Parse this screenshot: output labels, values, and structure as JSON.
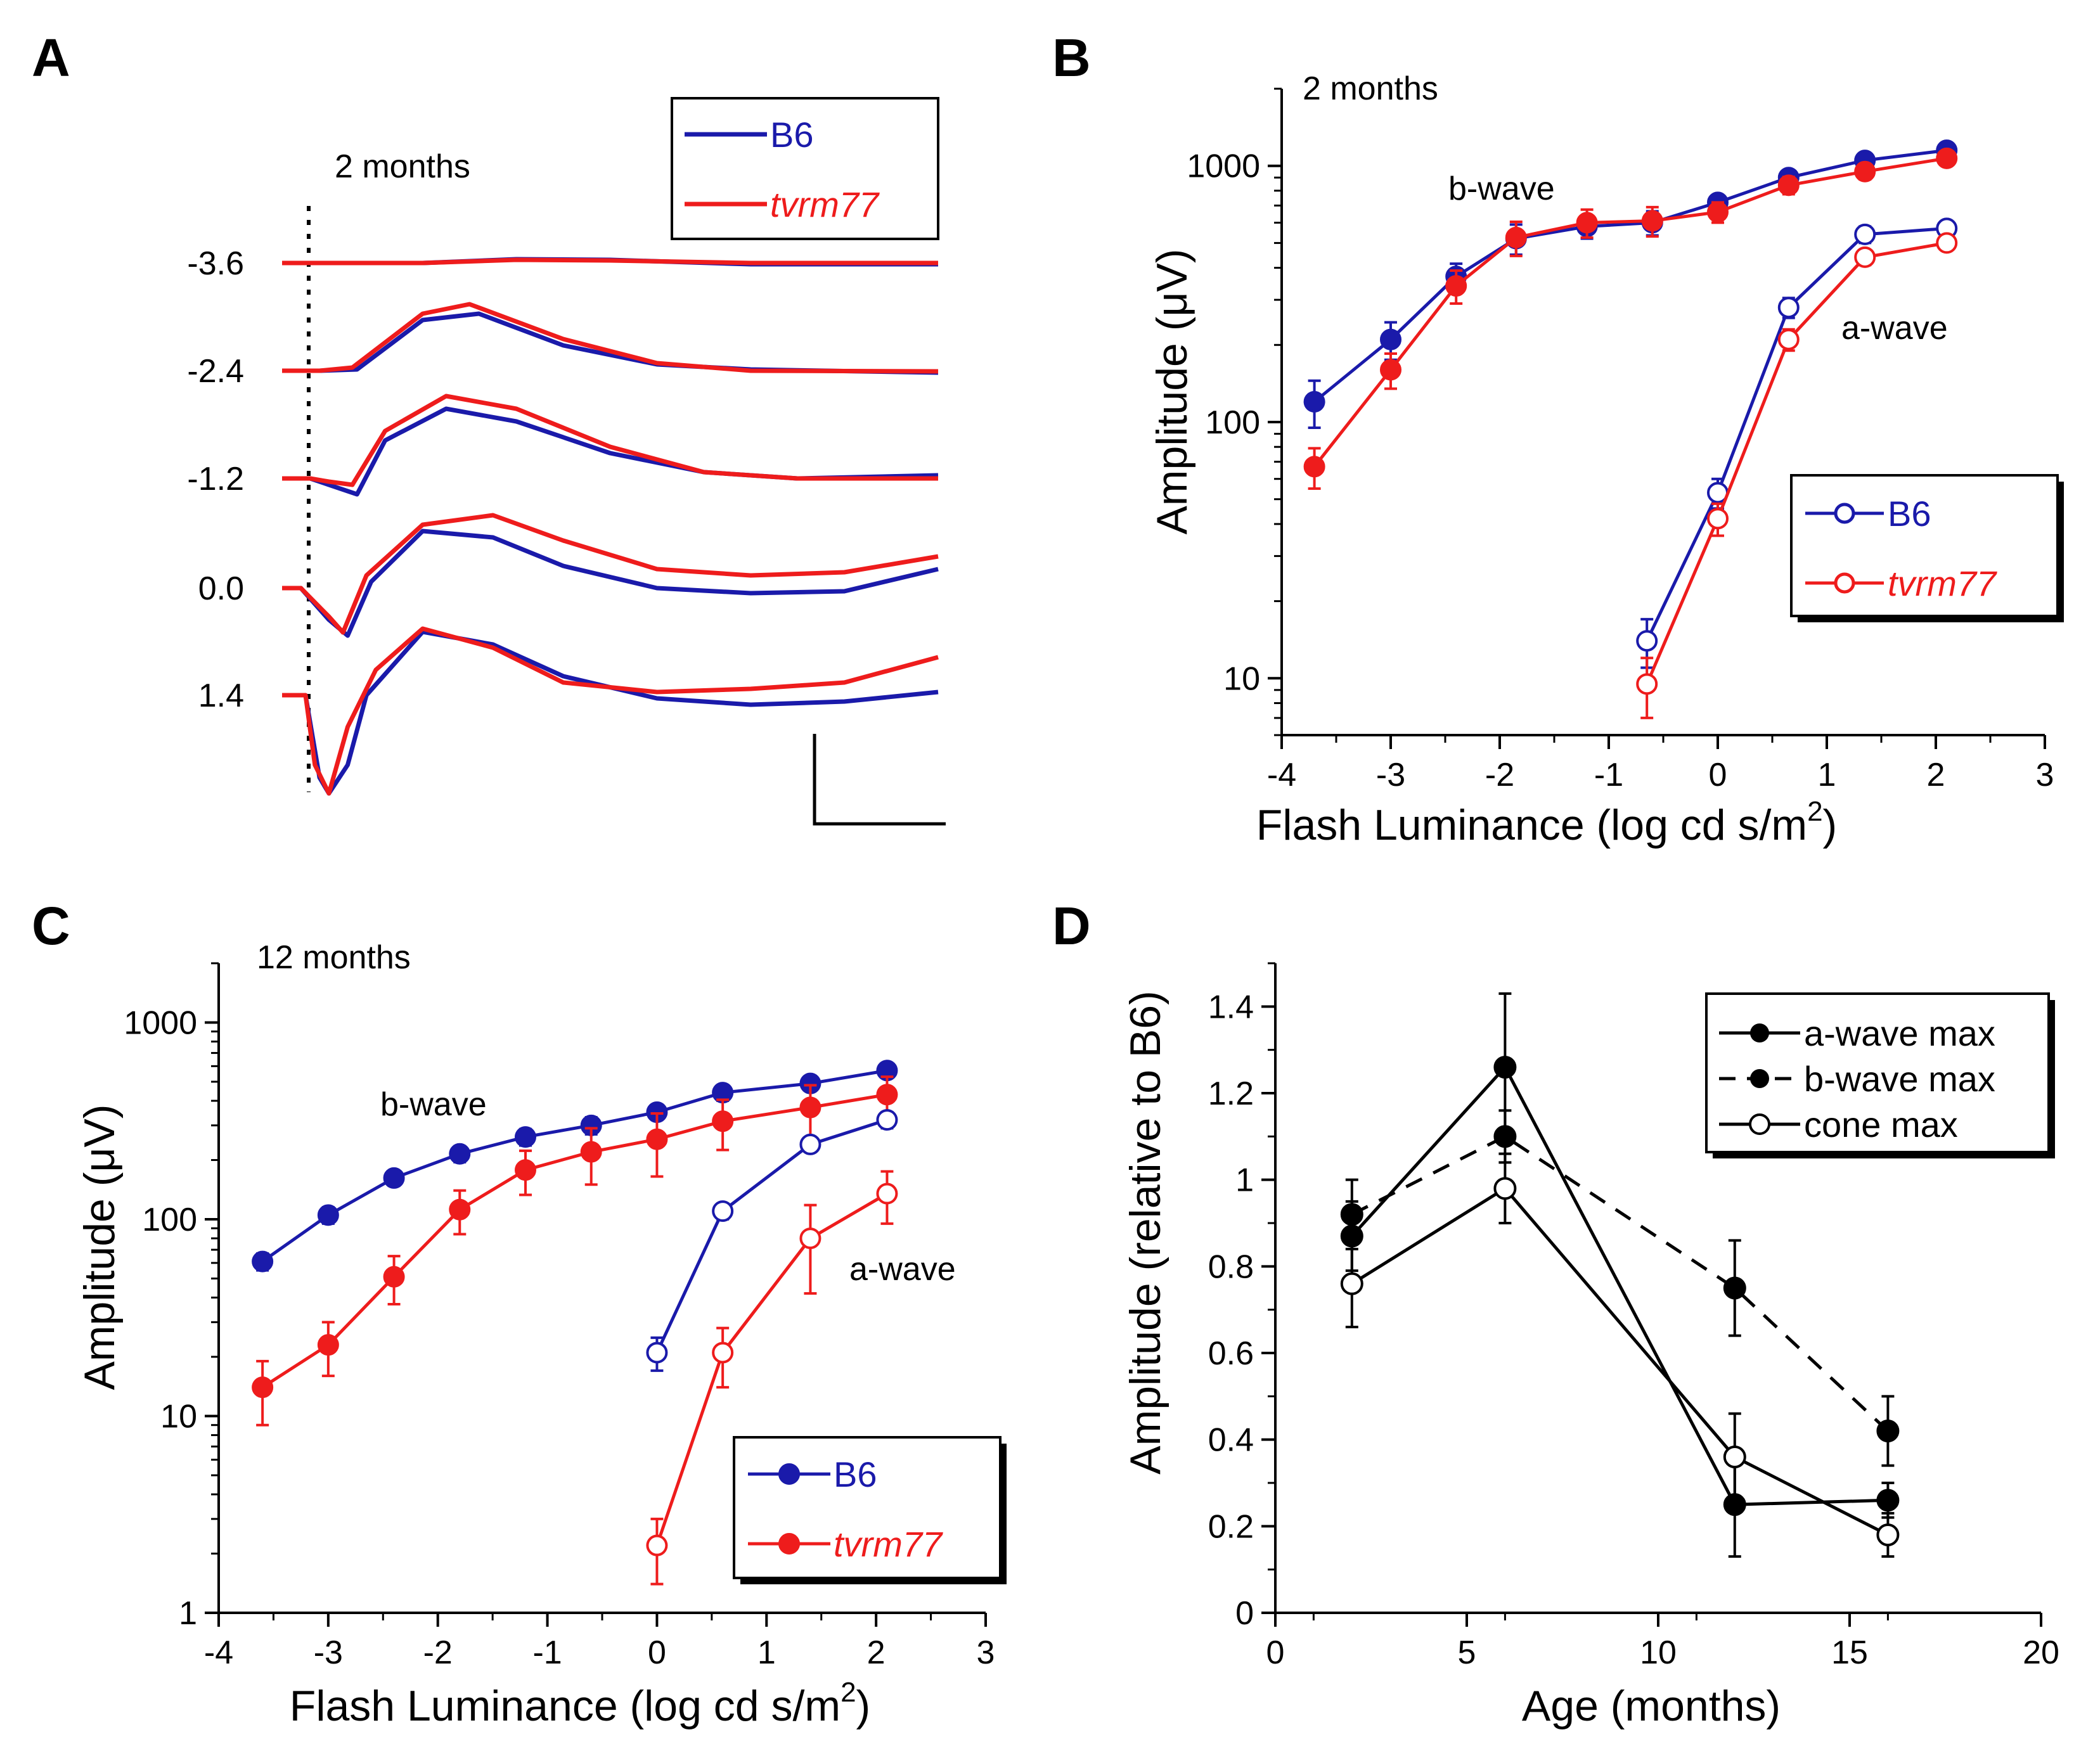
{
  "panels": [
    {
      "letter": "A"
    },
    {
      "letter": "B"
    },
    {
      "letter": "C"
    },
    {
      "letter": "D"
    }
  ],
  "colors": {
    "B6": "#1a1aaa",
    "tvrm77": "#ee1c1c",
    "black": "#000000"
  },
  "chart_data": [
    {
      "panel": "A",
      "type": "line",
      "title": "2 months",
      "description_text": "",
      "trace_labels": [
        "-3.6",
        "-2.4",
        "-1.2",
        "0.0",
        "1.4"
      ],
      "legend": [
        "B6",
        "tvrm77"
      ],
      "traces": [
        {
          "label": "-3.6",
          "B6": [
            [
              0,
              0
            ],
            [
              0.3,
              0
            ],
            [
              0.5,
              0.06
            ],
            [
              0.7,
              0.05
            ],
            [
              1.0,
              -0.02
            ],
            [
              1.4,
              -0.02
            ]
          ],
          "tvrm77": [
            [
              0,
              0
            ],
            [
              0.3,
              0
            ],
            [
              0.5,
              0.05
            ],
            [
              0.7,
              0.04
            ],
            [
              1.0,
              0.0
            ],
            [
              1.4,
              0.0
            ]
          ]
        },
        {
          "label": "-2.4",
          "B6": [
            [
              0,
              0
            ],
            [
              0.08,
              0
            ],
            [
              0.16,
              0.02
            ],
            [
              0.3,
              0.8
            ],
            [
              0.42,
              0.9
            ],
            [
              0.6,
              0.4
            ],
            [
              0.8,
              0.1
            ],
            [
              1.0,
              0.02
            ],
            [
              1.4,
              -0.03
            ]
          ],
          "tvrm77": [
            [
              0,
              0
            ],
            [
              0.08,
              0
            ],
            [
              0.15,
              0.05
            ],
            [
              0.3,
              0.9
            ],
            [
              0.4,
              1.05
            ],
            [
              0.6,
              0.5
            ],
            [
              0.8,
              0.12
            ],
            [
              1.0,
              0.0
            ],
            [
              1.4,
              -0.01
            ]
          ]
        },
        {
          "label": "-1.2",
          "B6": [
            [
              0,
              0
            ],
            [
              0.06,
              0
            ],
            [
              0.1,
              -0.1
            ],
            [
              0.16,
              -0.25
            ],
            [
              0.22,
              0.6
            ],
            [
              0.35,
              1.1
            ],
            [
              0.5,
              0.9
            ],
            [
              0.7,
              0.4
            ],
            [
              0.9,
              0.1
            ],
            [
              1.1,
              0.0
            ],
            [
              1.4,
              0.05
            ]
          ],
          "tvrm77": [
            [
              0,
              0
            ],
            [
              0.06,
              0
            ],
            [
              0.1,
              -0.05
            ],
            [
              0.15,
              -0.1
            ],
            [
              0.22,
              0.75
            ],
            [
              0.35,
              1.3
            ],
            [
              0.5,
              1.1
            ],
            [
              0.7,
              0.5
            ],
            [
              0.9,
              0.1
            ],
            [
              1.1,
              0.0
            ],
            [
              1.4,
              0.0
            ]
          ]
        },
        {
          "label": "0.0",
          "B6": [
            [
              0,
              0
            ],
            [
              0.04,
              0
            ],
            [
              0.1,
              -0.5
            ],
            [
              0.14,
              -0.75
            ],
            [
              0.19,
              0.1
            ],
            [
              0.3,
              0.9
            ],
            [
              0.45,
              0.8
            ],
            [
              0.6,
              0.35
            ],
            [
              0.8,
              0.0
            ],
            [
              1.0,
              -0.08
            ],
            [
              1.2,
              -0.05
            ],
            [
              1.4,
              0.3
            ]
          ],
          "tvrm77": [
            [
              0,
              0
            ],
            [
              0.04,
              0
            ],
            [
              0.1,
              -0.45
            ],
            [
              0.13,
              -0.7
            ],
            [
              0.18,
              0.2
            ],
            [
              0.3,
              1.0
            ],
            [
              0.45,
              1.15
            ],
            [
              0.6,
              0.75
            ],
            [
              0.8,
              0.3
            ],
            [
              1.0,
              0.2
            ],
            [
              1.2,
              0.25
            ],
            [
              1.4,
              0.5
            ]
          ]
        },
        {
          "label": "1.4",
          "B6": [
            [
              0,
              0
            ],
            [
              0.05,
              0
            ],
            [
              0.08,
              -1.3
            ],
            [
              0.1,
              -1.55
            ],
            [
              0.14,
              -1.1
            ],
            [
              0.18,
              0.0
            ],
            [
              0.3,
              1.0
            ],
            [
              0.45,
              0.8
            ],
            [
              0.6,
              0.3
            ],
            [
              0.8,
              -0.05
            ],
            [
              1.0,
              -0.15
            ],
            [
              1.2,
              -0.1
            ],
            [
              1.4,
              0.05
            ]
          ],
          "tvrm77": [
            [
              0,
              0
            ],
            [
              0.05,
              0
            ],
            [
              0.07,
              -1.1
            ],
            [
              0.1,
              -1.55
            ],
            [
              0.14,
              -0.5
            ],
            [
              0.2,
              0.4
            ],
            [
              0.3,
              1.05
            ],
            [
              0.45,
              0.75
            ],
            [
              0.6,
              0.2
            ],
            [
              0.8,
              0.05
            ],
            [
              1.0,
              0.1
            ],
            [
              1.2,
              0.2
            ],
            [
              1.4,
              0.6
            ]
          ]
        }
      ]
    },
    {
      "panel": "B",
      "type": "line",
      "title": "2 months",
      "xlabel": "Flash Luminance (log cd s/m",
      "xlabel_sup": "2",
      "xlabel_end": ")",
      "ylabel": "Amplitude (μV)",
      "xlim": [
        -4,
        3
      ],
      "ylim": [
        6,
        2000
      ],
      "yscale": "log",
      "xticks": [
        -4,
        -3,
        -2,
        -1,
        0,
        1,
        2,
        3
      ],
      "xtick_labels": [
        "-4",
        "-3",
        "-2",
        "-1",
        "0",
        "1",
        "2",
        "3"
      ],
      "yticks": [
        10,
        100,
        1000
      ],
      "ytick_labels": [
        "10",
        "100",
        "1000"
      ],
      "annotations": [
        "b-wave",
        "a-wave"
      ],
      "legend": [
        "B6",
        "tvrm77"
      ],
      "series": [
        {
          "name": "B6 b-wave",
          "group": "B6",
          "filled": true,
          "x": [
            -3.7,
            -3.0,
            -2.4,
            -1.85,
            -1.2,
            -0.6,
            0.0,
            0.65,
            1.35,
            2.1
          ],
          "y": [
            120,
            210,
            370,
            520,
            580,
            600,
            720,
            900,
            1050,
            1150
          ],
          "err": [
            25,
            35,
            45,
            70,
            60,
            65,
            50,
            55,
            55,
            45
          ]
        },
        {
          "name": "tvrm77 b-wave",
          "group": "tvrm77",
          "filled": true,
          "x": [
            -3.7,
            -3.0,
            -2.4,
            -1.85,
            -1.2,
            -0.6,
            0.0,
            0.65,
            1.35,
            2.1
          ],
          "y": [
            67,
            160,
            340,
            525,
            600,
            610,
            660,
            840,
            950,
            1070
          ],
          "err": [
            12,
            25,
            50,
            80,
            75,
            80,
            60,
            65,
            65,
            55
          ]
        },
        {
          "name": "B6 a-wave",
          "group": "B6",
          "filled": false,
          "x": [
            -0.65,
            0.0,
            0.65,
            1.35,
            2.1
          ],
          "y": [
            14,
            53,
            280,
            540,
            570
          ],
          "err": [
            3,
            7,
            25,
            40,
            40
          ]
        },
        {
          "name": "tvrm77 a-wave",
          "group": "tvrm77",
          "filled": false,
          "x": [
            -0.65,
            0.0,
            0.65,
            1.35,
            2.1
          ],
          "y": [
            9.5,
            42,
            210,
            440,
            500
          ],
          "err": [
            2.5,
            6,
            20,
            30,
            30
          ]
        }
      ]
    },
    {
      "panel": "C",
      "type": "line",
      "title": "12 months",
      "xlabel": "Flash Luminance (log cd s/m",
      "xlabel_sup": "2",
      "xlabel_end": ")",
      "ylabel": "Amplitude (μV)",
      "xlim": [
        -4,
        3
      ],
      "ylim": [
        1,
        2000
      ],
      "yscale": "log",
      "xticks": [
        -4,
        -3,
        -2,
        -1,
        0,
        1,
        2,
        3
      ],
      "xtick_labels": [
        "-4",
        "-3",
        "-2",
        "-1",
        "0",
        "1",
        "2",
        "3"
      ],
      "yticks": [
        1,
        10,
        100,
        1000
      ],
      "ytick_labels": [
        "1",
        "10",
        "100",
        "1000"
      ],
      "annotations": [
        "b-wave",
        "a-wave"
      ],
      "legend": [
        "B6",
        "tvrm77"
      ],
      "series": [
        {
          "name": "B6 b-wave",
          "group": "B6",
          "filled": true,
          "x": [
            -3.6,
            -3.0,
            -2.4,
            -1.8,
            -1.2,
            -0.6,
            0.0,
            0.6,
            1.4,
            2.1
          ],
          "y": [
            61,
            105,
            162,
            215,
            262,
            300,
            350,
            440,
            490,
            570
          ],
          "err": [
            6,
            10,
            14,
            20,
            25,
            30,
            30,
            40,
            40,
            45
          ]
        },
        {
          "name": "tvrm77 b-wave",
          "group": "tvrm77",
          "filled": true,
          "x": [
            -3.6,
            -3.0,
            -2.4,
            -1.8,
            -1.2,
            -0.6,
            0.0,
            0.6,
            1.4,
            2.1
          ],
          "y": [
            14,
            23,
            51,
            112,
            178,
            220,
            255,
            315,
            370,
            430
          ],
          "err": [
            5,
            7,
            14,
            28,
            45,
            70,
            90,
            90,
            110,
            100
          ]
        },
        {
          "name": "B6 a-wave",
          "group": "B6",
          "filled": false,
          "x": [
            0.0,
            0.6,
            1.4,
            2.1
          ],
          "y": [
            21,
            110,
            240,
            320
          ],
          "err": [
            4,
            10,
            20,
            30
          ]
        },
        {
          "name": "tvrm77 a-wave",
          "group": "tvrm77",
          "filled": false,
          "x": [
            0.0,
            0.6,
            1.4,
            2.1
          ],
          "y": [
            2.2,
            21,
            80,
            135
          ],
          "err": [
            0.8,
            7,
            38,
            40
          ]
        }
      ]
    },
    {
      "panel": "D",
      "type": "line",
      "xlabel": "Age (months)",
      "ylabel": "Amplitude (relative to B6)",
      "xlim": [
        0,
        20
      ],
      "ylim": [
        0,
        1.5
      ],
      "xticks": [
        0,
        5,
        10,
        15,
        20
      ],
      "xtick_labels": [
        "0",
        "5",
        "10",
        "15",
        "20"
      ],
      "yticks": [
        0,
        0.2,
        0.4,
        0.6,
        0.8,
        1.0,
        1.2,
        1.4
      ],
      "ytick_labels": [
        "0",
        "0.2",
        "0.4",
        "0.6",
        "0.8",
        "1",
        "1.2",
        "1.4"
      ],
      "legend": [
        "a-wave max",
        "b-wave max",
        "cone max"
      ],
      "series": [
        {
          "name": "a-wave max",
          "filled": true,
          "dashed": false,
          "x": [
            2,
            6,
            12,
            16
          ],
          "y": [
            0.87,
            1.26,
            0.25,
            0.26
          ],
          "err": [
            0.08,
            0.17,
            0.12,
            0.04
          ]
        },
        {
          "name": "b-wave max",
          "filled": true,
          "dashed": true,
          "x": [
            2,
            6,
            12,
            16
          ],
          "y": [
            0.92,
            1.1,
            0.75,
            0.42
          ],
          "err": [
            0.08,
            0.06,
            0.11,
            0.08
          ]
        },
        {
          "name": "cone max",
          "filled": false,
          "dashed": false,
          "x": [
            2,
            6,
            12,
            16
          ],
          "y": [
            0.76,
            0.98,
            0.36,
            0.18
          ],
          "err": [
            0.1,
            0.08,
            0.1,
            0.05
          ]
        }
      ]
    }
  ]
}
